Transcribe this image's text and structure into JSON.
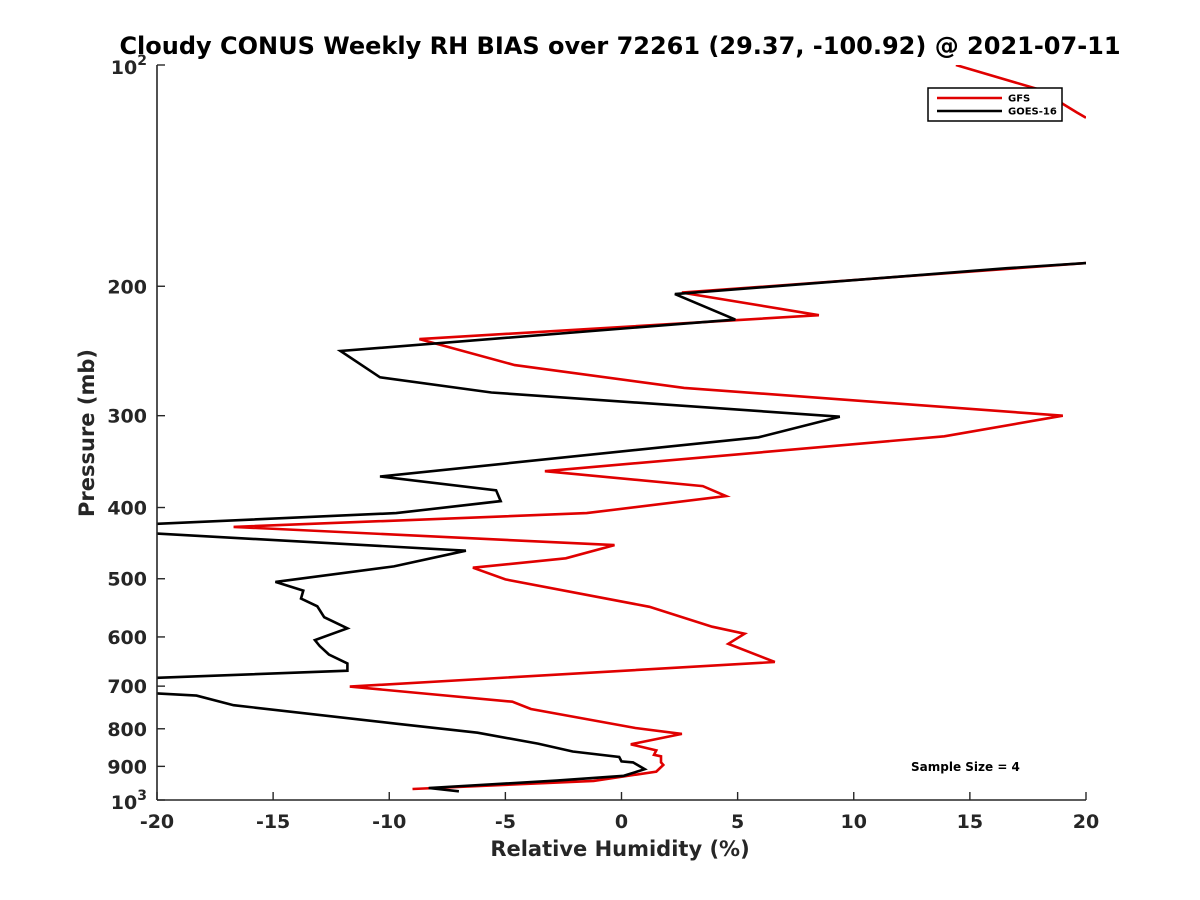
{
  "chart_data": {
    "type": "line",
    "title": "Cloudy CONUS Weekly RH BIAS over 72261 (29.37, -100.92) @ 2021-07-11",
    "xlabel": "Relative Humidity (%)",
    "ylabel": "Pressure (mb)",
    "xlim": [
      -20,
      20
    ],
    "ylim": [
      1000,
      100
    ],
    "y_scale": "log",
    "y_reversed": true,
    "x_ticks": [
      "-20",
      "-15",
      "-10",
      "-5",
      "0",
      "5",
      "10",
      "15",
      "20"
    ],
    "y_ticks": [
      {
        "value": 100,
        "base": "10",
        "exp": "2"
      },
      {
        "value": 200,
        "label": "200"
      },
      {
        "value": 300,
        "label": "300"
      },
      {
        "value": 400,
        "label": "400"
      },
      {
        "value": 500,
        "label": "500"
      },
      {
        "value": 600,
        "label": "600"
      },
      {
        "value": 700,
        "label": "700"
      },
      {
        "value": 800,
        "label": "800"
      },
      {
        "value": 900,
        "label": "900"
      },
      {
        "value": 1000,
        "base": "10",
        "exp": "3"
      }
    ],
    "legend_position": "top-right",
    "annotation": "Sample Size = 4",
    "series": [
      {
        "name": "GFS",
        "color": "#e00000",
        "segments": [
          [
            [
              14.4,
              100
            ],
            [
              18.0,
              108
            ],
            [
              19.6,
              116
            ],
            [
              20.0,
              118
            ]
          ],
          [
            [
              20.0,
              186
            ],
            [
              2.6,
              204
            ],
            [
              8.5,
              219
            ],
            [
              -8.7,
              236
            ],
            [
              -4.6,
              256
            ],
            [
              2.7,
              275
            ],
            [
              19.0,
              300
            ],
            [
              13.9,
              320
            ],
            [
              -3.3,
              357
            ],
            [
              3.5,
              374
            ],
            [
              4.5,
              386
            ],
            [
              -1.5,
              407
            ],
            [
              -16.7,
              425
            ],
            [
              -0.3,
              450
            ],
            [
              -2.4,
              469
            ],
            [
              -6.4,
              483
            ],
            [
              -5.0,
              501
            ],
            [
              1.2,
              546
            ],
            [
              3.9,
              581
            ],
            [
              5.3,
              594
            ],
            [
              4.6,
              613
            ],
            [
              6.6,
              649
            ],
            [
              -11.7,
              701
            ],
            [
              -4.7,
              735
            ],
            [
              -3.9,
              752
            ],
            [
              0.6,
              798
            ],
            [
              2.6,
              813
            ],
            [
              0.4,
              840
            ],
            [
              1.5,
              856
            ],
            [
              1.4,
              868
            ],
            [
              1.7,
              872
            ],
            [
              1.7,
              889
            ],
            [
              1.8,
              896
            ],
            [
              1.5,
              915
            ],
            [
              -1.2,
              942
            ],
            [
              -9.0,
              966
            ]
          ]
        ]
      },
      {
        "name": "GOES-16",
        "color": "#000000",
        "segments": [
          [
            [
              20.0,
              186
            ],
            [
              16.6,
              189
            ],
            [
              2.3,
              205
            ],
            [
              4.9,
              222
            ],
            [
              -12.1,
              245
            ],
            [
              -10.4,
              266
            ],
            [
              -5.6,
              279
            ],
            [
              9.4,
              301
            ],
            [
              5.9,
              321
            ],
            [
              -10.4,
              363
            ],
            [
              -5.4,
              379
            ],
            [
              -5.2,
              392
            ],
            [
              -9.7,
              407
            ],
            [
              -20.0,
              421
            ]
          ],
          [
            [
              -20.0,
              434
            ],
            [
              -6.7,
              458
            ],
            [
              -9.8,
              481
            ],
            [
              -14.9,
              505
            ],
            [
              -13.7,
              519
            ],
            [
              -13.8,
              532
            ],
            [
              -13.1,
              545
            ],
            [
              -12.8,
              564
            ],
            [
              -11.8,
              584
            ],
            [
              -13.2,
              606
            ],
            [
              -13.0,
              617
            ],
            [
              -12.6,
              634
            ],
            [
              -11.8,
              652
            ],
            [
              -11.8,
              667
            ],
            [
              -20.0,
              682
            ]
          ],
          [
            [
              -20.0,
              716
            ],
            [
              -18.3,
              721
            ],
            [
              -16.7,
              743
            ],
            [
              -9.6,
              788
            ],
            [
              -6.2,
              810
            ],
            [
              -3.6,
              838
            ],
            [
              -2.1,
              859
            ],
            [
              -0.1,
              874
            ],
            [
              0.0,
              886
            ],
            [
              0.5,
              889
            ],
            [
              1.0,
              908
            ],
            [
              0.1,
              927
            ],
            [
              -2.8,
              941
            ],
            [
              -8.3,
              963
            ],
            [
              -7.0,
              973
            ]
          ]
        ]
      }
    ]
  }
}
